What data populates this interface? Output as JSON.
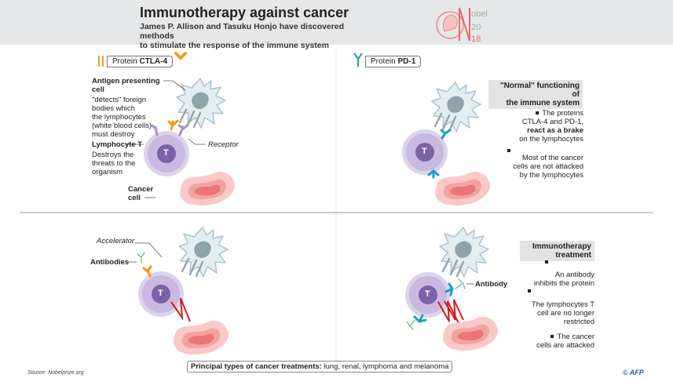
{
  "header": {
    "title": "Immunotherapy against cancer",
    "subtitle_line1": "James P. Allison and Tasuku Honjo have discovered methods",
    "subtitle_line2": "to stimulate the response of the immune system",
    "logo": {
      "word": "obel",
      "initial": "N",
      "year_top": "20",
      "year_bottom": "18"
    }
  },
  "colors": {
    "ctla4": "#f39a1e",
    "pd1": "#1a9fc0",
    "t_cell": "#c9b8e0",
    "t_nucleus": "#7a62a8",
    "cancer": "#f08a8a",
    "dendritic": "#e3edf2",
    "arrow": "#d7191c",
    "antibody": "#7cc48c"
  },
  "q1": {
    "protein_prefix": "Protein",
    "protein_name": "CTLA-4",
    "apc_title": "Antigen presenting cell",
    "apc_desc": [
      "\"détects\" foreign",
      "bodies which",
      "the lymphocytes",
      "(white blood cells)",
      "must destroy"
    ],
    "lymph_title": "Lymphocyte T",
    "lymph_desc": [
      "Destroys the",
      "threats to the",
      "organism"
    ],
    "receptor": "Receptor",
    "cancer_cell": [
      "Cancer",
      "cell"
    ],
    "t": "T"
  },
  "q2": {
    "protein_prefix": "Protein",
    "protein_name": "PD-1",
    "box": [
      "\"Normal\" functioning of",
      "the immune system"
    ],
    "bullet1": [
      "The proteins",
      "CTLA-4 and PD-1,",
      "react as a brake",
      "on the lymphocytes"
    ],
    "bullet2": [
      "Most of the cancer",
      "cells are not attacked",
      "by the lymphocytes"
    ],
    "t": "T"
  },
  "q3": {
    "accelerator": "Accelerator",
    "antibodies": "Antibodies",
    "t": "T"
  },
  "q4": {
    "antibody": "Antibody",
    "box": [
      "Immunotherapy",
      "treatment"
    ],
    "bullet1": [
      "An antibody",
      "inhibits the protein"
    ],
    "bullet2": [
      "The lymphocytes T",
      "cell are no longer",
      "restricted"
    ],
    "bullet3": [
      "The cancer",
      "cells are attacked"
    ],
    "t": "T"
  },
  "footer": {
    "source": "Source: Nobelprize.org",
    "treatments_label": "Principal types of cancer treatments:",
    "treatments_value": "lung, renal, lymphoma and melanoma",
    "credit": "© AFP"
  }
}
